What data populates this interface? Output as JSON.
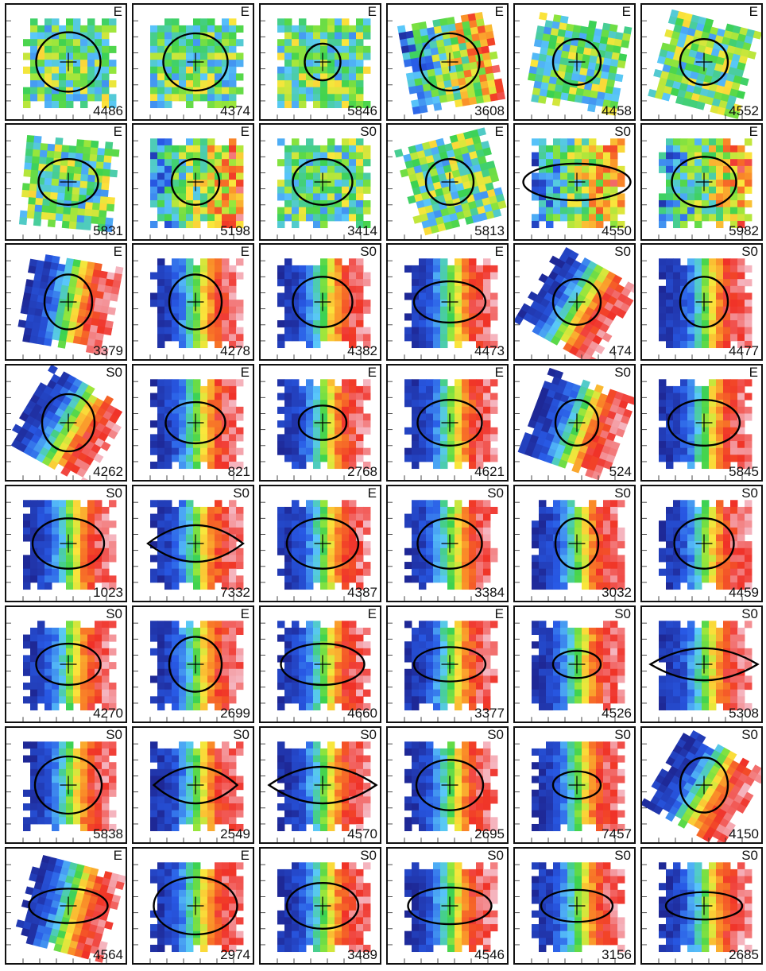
{
  "panels": [
    {
      "id": "4486",
      "type": "E",
      "pattern": "noisy",
      "rot": 0,
      "contour": "circle",
      "ellipse": [
        0.27,
        0.26
      ]
    },
    {
      "id": "4374",
      "type": "E",
      "pattern": "noisy",
      "rot": 0,
      "contour": "circle",
      "ellipse": [
        0.27,
        0.25
      ]
    },
    {
      "id": "5846",
      "type": "E",
      "pattern": "noisy",
      "rot": 0,
      "contour": "circle",
      "ellipse": [
        0.15,
        0.16
      ]
    },
    {
      "id": "3608",
      "type": "E",
      "pattern": "noisy-rot",
      "rot": -10,
      "contour": "circle",
      "ellipse": [
        0.25,
        0.25
      ]
    },
    {
      "id": "4458",
      "type": "E",
      "pattern": "noisy",
      "rot": 10,
      "contour": "circle",
      "ellipse": [
        0.2,
        0.2
      ]
    },
    {
      "id": "4552",
      "type": "E",
      "pattern": "noisy",
      "rot": 15,
      "contour": "circle",
      "ellipse": [
        0.2,
        0.2
      ]
    },
    {
      "id": "5831",
      "type": "E",
      "pattern": "noisy",
      "rot": 5,
      "contour": "ellipse",
      "ellipse": [
        0.25,
        0.2
      ]
    },
    {
      "id": "5198",
      "type": "E",
      "pattern": "noisy-rot",
      "rot": 0,
      "contour": "circle",
      "ellipse": [
        0.2,
        0.2
      ]
    },
    {
      "id": "3414",
      "type": "S0",
      "pattern": "noisy",
      "rot": 0,
      "contour": "ellipse",
      "ellipse": [
        0.25,
        0.2
      ]
    },
    {
      "id": "5813",
      "type": "E",
      "pattern": "noisy",
      "rot": -15,
      "contour": "circle",
      "ellipse": [
        0.2,
        0.2
      ]
    },
    {
      "id": "4550",
      "type": "S0",
      "pattern": "noisy-rot",
      "rot": 0,
      "contour": "ellipse",
      "ellipse": [
        0.45,
        0.16
      ]
    },
    {
      "id": "5982",
      "type": "E",
      "pattern": "noisy-rot",
      "rot": 0,
      "contour": "ellipse",
      "ellipse": [
        0.27,
        0.22
      ]
    },
    {
      "id": "3379",
      "type": "E",
      "pattern": "rot",
      "rot": 10,
      "contour": "ellipse",
      "ellipse": [
        0.2,
        0.24
      ]
    },
    {
      "id": "4278",
      "type": "E",
      "pattern": "rot",
      "rot": 0,
      "contour": "ellipse",
      "ellipse": [
        0.22,
        0.24
      ]
    },
    {
      "id": "4382",
      "type": "S0",
      "pattern": "rot",
      "rot": 0,
      "contour": "ellipse",
      "ellipse": [
        0.25,
        0.22
      ]
    },
    {
      "id": "4473",
      "type": "E",
      "pattern": "rot",
      "rot": 0,
      "contour": "ellipse",
      "ellipse": [
        0.3,
        0.18
      ]
    },
    {
      "id": "474",
      "type": "S0",
      "pattern": "rot",
      "rot": 30,
      "contour": "circle",
      "ellipse": [
        0.2,
        0.2
      ]
    },
    {
      "id": "4477",
      "type": "S0",
      "pattern": "rot",
      "rot": 0,
      "contour": "ellipse",
      "ellipse": [
        0.2,
        0.22
      ]
    },
    {
      "id": "4262",
      "type": "S0",
      "pattern": "rot",
      "rot": 30,
      "contour": "ellipse",
      "ellipse": [
        0.22,
        0.25
      ]
    },
    {
      "id": "821",
      "type": "E",
      "pattern": "rot",
      "rot": 0,
      "contour": "ellipse",
      "ellipse": [
        0.25,
        0.18
      ]
    },
    {
      "id": "2768",
      "type": "E",
      "pattern": "rot",
      "rot": 0,
      "contour": "ellipse",
      "ellipse": [
        0.2,
        0.15
      ]
    },
    {
      "id": "4621",
      "type": "E",
      "pattern": "rot",
      "rot": 0,
      "contour": "ellipse",
      "ellipse": [
        0.27,
        0.2
      ]
    },
    {
      "id": "524",
      "type": "S0",
      "pattern": "rot",
      "rot": 20,
      "contour": "circle",
      "ellipse": [
        0.18,
        0.2
      ]
    },
    {
      "id": "5845",
      "type": "E",
      "pattern": "rot",
      "rot": 0,
      "contour": "ellipse",
      "ellipse": [
        0.3,
        0.2
      ]
    },
    {
      "id": "1023",
      "type": "S0",
      "pattern": "rot",
      "rot": 0,
      "contour": "ellipse",
      "ellipse": [
        0.3,
        0.22
      ]
    },
    {
      "id": "7332",
      "type": "S0",
      "pattern": "rot",
      "rot": 0,
      "contour": "lens",
      "ellipse": [
        0.4,
        0.16
      ]
    },
    {
      "id": "4387",
      "type": "E",
      "pattern": "rot",
      "rot": 0,
      "contour": "ellipse",
      "ellipse": [
        0.3,
        0.22
      ]
    },
    {
      "id": "3384",
      "type": "S0",
      "pattern": "rot",
      "rot": 0,
      "contour": "ellipse",
      "ellipse": [
        0.27,
        0.22
      ]
    },
    {
      "id": "3032",
      "type": "S0",
      "pattern": "rot",
      "rot": 0,
      "contour": "circle",
      "ellipse": [
        0.18,
        0.22
      ]
    },
    {
      "id": "4459",
      "type": "S0",
      "pattern": "rot",
      "rot": 0,
      "contour": "ellipse",
      "ellipse": [
        0.25,
        0.22
      ]
    },
    {
      "id": "4270",
      "type": "S0",
      "pattern": "rot",
      "rot": 0,
      "contour": "ellipse",
      "ellipse": [
        0.27,
        0.18
      ]
    },
    {
      "id": "2699",
      "type": "E",
      "pattern": "rot",
      "rot": 0,
      "contour": "ellipse",
      "ellipse": [
        0.22,
        0.24
      ]
    },
    {
      "id": "4660",
      "type": "E",
      "pattern": "rot",
      "rot": 0,
      "contour": "ellipse",
      "ellipse": [
        0.35,
        0.18
      ]
    },
    {
      "id": "3377",
      "type": "E",
      "pattern": "rot",
      "rot": 0,
      "contour": "ellipse",
      "ellipse": [
        0.3,
        0.15
      ]
    },
    {
      "id": "4526",
      "type": "S0",
      "pattern": "rot",
      "rot": 0,
      "contour": "ellipse",
      "ellipse": [
        0.2,
        0.12
      ]
    },
    {
      "id": "5308",
      "type": "S0",
      "pattern": "rot",
      "rot": 0,
      "contour": "lens",
      "ellipse": [
        0.45,
        0.14
      ]
    },
    {
      "id": "5838",
      "type": "S0",
      "pattern": "rot",
      "rot": 0,
      "contour": "ellipse",
      "ellipse": [
        0.28,
        0.25
      ]
    },
    {
      "id": "2549",
      "type": "S0",
      "pattern": "rot",
      "rot": 0,
      "contour": "lens",
      "ellipse": [
        0.35,
        0.16
      ]
    },
    {
      "id": "4570",
      "type": "S0",
      "pattern": "rot",
      "rot": 0,
      "contour": "lens",
      "ellipse": [
        0.45,
        0.16
      ]
    },
    {
      "id": "2695",
      "type": "S0",
      "pattern": "rot",
      "rot": 0,
      "contour": "ellipse",
      "ellipse": [
        0.28,
        0.22
      ]
    },
    {
      "id": "7457",
      "type": "S0",
      "pattern": "rot",
      "rot": 0,
      "contour": "ellipse",
      "ellipse": [
        0.2,
        0.12
      ]
    },
    {
      "id": "4150",
      "type": "S0",
      "pattern": "rot",
      "rot": 30,
      "contour": "ellipse",
      "ellipse": [
        0.2,
        0.24
      ]
    },
    {
      "id": "4564",
      "type": "E",
      "pattern": "rot",
      "rot": 15,
      "contour": "ellipse",
      "ellipse": [
        0.33,
        0.15
      ]
    },
    {
      "id": "2974",
      "type": "E",
      "pattern": "rot",
      "rot": 0,
      "contour": "ellipse",
      "ellipse": [
        0.35,
        0.25
      ]
    },
    {
      "id": "3489",
      "type": "S0",
      "pattern": "rot",
      "rot": 0,
      "contour": "ellipse",
      "ellipse": [
        0.3,
        0.2
      ]
    },
    {
      "id": "4546",
      "type": "S0",
      "pattern": "rot",
      "rot": 0,
      "contour": "ellipse",
      "ellipse": [
        0.35,
        0.16
      ]
    },
    {
      "id": "3156",
      "type": "S0",
      "pattern": "rot",
      "rot": 0,
      "contour": "ellipse",
      "ellipse": [
        0.3,
        0.14
      ]
    },
    {
      "id": "2685",
      "type": "S0",
      "pattern": "rot",
      "rot": 0,
      "contour": "ellipse",
      "ellipse": [
        0.32,
        0.12
      ]
    }
  ]
}
